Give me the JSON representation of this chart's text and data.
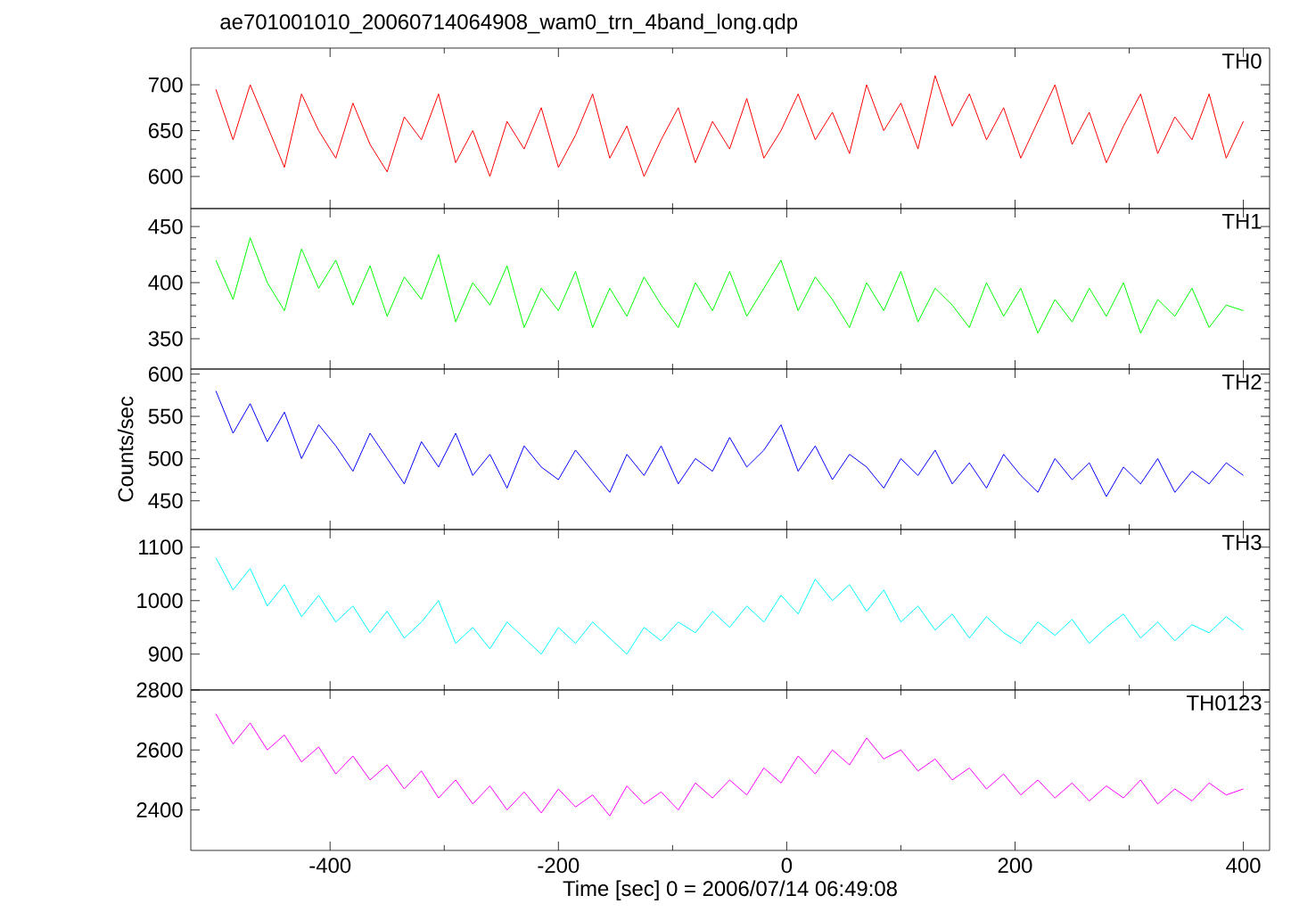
{
  "chart_data": [
    {
      "type": "line",
      "title": "ae701001010_20060714064908_wam0_trn_4band_long.qdp",
      "x": [
        -500,
        -485,
        -470,
        -455,
        -440,
        -425,
        -410,
        -395,
        -380,
        -365,
        -350,
        -335,
        -320,
        -305,
        -290,
        -275,
        -260,
        -245,
        -230,
        -215,
        -200,
        -185,
        -170,
        -155,
        -140,
        -125,
        -110,
        -95,
        -80,
        -65,
        -50,
        -35,
        -20,
        -5,
        10,
        25,
        40,
        55,
        70,
        85,
        100,
        115,
        130,
        145,
        160,
        175,
        190,
        205,
        220,
        235,
        250,
        265,
        280,
        295,
        310,
        325,
        340,
        355,
        370,
        385,
        400
      ],
      "xlim": [
        -522,
        423
      ],
      "xticks": [
        -400,
        -200,
        0,
        200,
        400
      ],
      "ylim": [
        565,
        740
      ],
      "yticks": [
        600,
        650,
        700
      ],
      "tick_labels": "y",
      "series": [
        {
          "name": "TH0",
          "color": "#ff0000",
          "values": [
            695,
            640,
            700,
            655,
            610,
            690,
            650,
            620,
            680,
            635,
            605,
            665,
            640,
            690,
            615,
            650,
            600,
            660,
            630,
            675,
            610,
            645,
            690,
            620,
            655,
            600,
            640,
            675,
            615,
            660,
            630,
            685,
            620,
            650,
            690,
            640,
            670,
            625,
            700,
            650,
            680,
            630,
            710,
            655,
            690,
            640,
            675,
            620,
            660,
            700,
            635,
            670,
            615,
            655,
            690,
            625,
            665,
            640,
            690,
            620,
            660
          ]
        }
      ]
    },
    {
      "type": "line",
      "x": [
        -500,
        -485,
        -470,
        -455,
        -440,
        -425,
        -410,
        -395,
        -380,
        -365,
        -350,
        -335,
        -320,
        -305,
        -290,
        -275,
        -260,
        -245,
        -230,
        -215,
        -200,
        -185,
        -170,
        -155,
        -140,
        -125,
        -110,
        -95,
        -80,
        -65,
        -50,
        -35,
        -20,
        -5,
        10,
        25,
        40,
        55,
        70,
        85,
        100,
        115,
        130,
        145,
        160,
        175,
        190,
        205,
        220,
        235,
        250,
        265,
        280,
        295,
        310,
        325,
        340,
        355,
        370,
        385,
        400
      ],
      "xlim": [
        -522,
        423
      ],
      "xticks": [
        -400,
        -200,
        0,
        200,
        400
      ],
      "ylim": [
        323,
        466
      ],
      "yticks": [
        350,
        400,
        450
      ],
      "tick_labels": "y",
      "series": [
        {
          "name": "TH1",
          "color": "#00ff00",
          "values": [
            420,
            385,
            440,
            400,
            375,
            430,
            395,
            420,
            380,
            415,
            370,
            405,
            385,
            425,
            365,
            400,
            380,
            415,
            360,
            395,
            375,
            410,
            360,
            395,
            370,
            405,
            380,
            360,
            400,
            375,
            410,
            370,
            395,
            420,
            375,
            405,
            385,
            360,
            400,
            375,
            410,
            365,
            395,
            380,
            360,
            400,
            370,
            395,
            355,
            385,
            365,
            395,
            370,
            400,
            355,
            385,
            370,
            395,
            360,
            380,
            375
          ]
        }
      ]
    },
    {
      "type": "line",
      "ylabel": "Counts/sec",
      "x": [
        -500,
        -485,
        -470,
        -455,
        -440,
        -425,
        -410,
        -395,
        -380,
        -365,
        -350,
        -335,
        -320,
        -305,
        -290,
        -275,
        -260,
        -245,
        -230,
        -215,
        -200,
        -185,
        -170,
        -155,
        -140,
        -125,
        -110,
        -95,
        -80,
        -65,
        -50,
        -35,
        -20,
        -5,
        10,
        25,
        40,
        55,
        70,
        85,
        100,
        115,
        130,
        145,
        160,
        175,
        190,
        205,
        220,
        235,
        250,
        265,
        280,
        295,
        310,
        325,
        340,
        355,
        370,
        385,
        400
      ],
      "xlim": [
        -522,
        423
      ],
      "xticks": [
        -400,
        -200,
        0,
        200,
        400
      ],
      "ylim": [
        416,
        606
      ],
      "yticks": [
        450,
        500,
        550,
        600
      ],
      "tick_labels": "y",
      "series": [
        {
          "name": "TH2",
          "color": "#0000ff",
          "values": [
            580,
            530,
            565,
            520,
            555,
            500,
            540,
            515,
            485,
            530,
            500,
            470,
            520,
            490,
            530,
            480,
            505,
            465,
            515,
            490,
            475,
            510,
            485,
            460,
            505,
            480,
            515,
            470,
            500,
            485,
            525,
            490,
            510,
            540,
            485,
            515,
            475,
            505,
            490,
            465,
            500,
            480,
            510,
            470,
            495,
            465,
            505,
            480,
            460,
            500,
            475,
            495,
            455,
            490,
            470,
            500,
            460,
            485,
            470,
            495,
            480
          ]
        }
      ]
    },
    {
      "type": "line",
      "x": [
        -500,
        -485,
        -470,
        -455,
        -440,
        -425,
        -410,
        -395,
        -380,
        -365,
        -350,
        -335,
        -320,
        -305,
        -290,
        -275,
        -260,
        -245,
        -230,
        -215,
        -200,
        -185,
        -170,
        -155,
        -140,
        -125,
        -110,
        -95,
        -80,
        -65,
        -50,
        -35,
        -20,
        -5,
        10,
        25,
        40,
        55,
        70,
        85,
        100,
        115,
        130,
        145,
        160,
        175,
        190,
        205,
        220,
        235,
        250,
        265,
        280,
        295,
        310,
        325,
        340,
        355,
        370,
        385,
        400
      ],
      "xlim": [
        -522,
        423
      ],
      "xticks": [
        -400,
        -200,
        0,
        200,
        400
      ],
      "ylim": [
        833,
        1133
      ],
      "yticks": [
        900,
        1000,
        1100
      ],
      "tick_labels": "y",
      "series": [
        {
          "name": "TH3",
          "color": "#00ffff",
          "values": [
            1080,
            1020,
            1060,
            990,
            1030,
            970,
            1010,
            960,
            990,
            940,
            980,
            930,
            960,
            1000,
            920,
            950,
            910,
            960,
            930,
            900,
            950,
            920,
            960,
            930,
            900,
            950,
            925,
            960,
            940,
            980,
            950,
            990,
            960,
            1010,
            975,
            1040,
            1000,
            1030,
            980,
            1020,
            960,
            990,
            945,
            975,
            930,
            970,
            940,
            920,
            960,
            935,
            965,
            920,
            950,
            975,
            930,
            960,
            925,
            955,
            940,
            970,
            945
          ]
        }
      ]
    },
    {
      "type": "line",
      "xlabel": "Time [sec] 0 = 2006/07/14 06:49:08",
      "x": [
        -500,
        -485,
        -470,
        -455,
        -440,
        -425,
        -410,
        -395,
        -380,
        -365,
        -350,
        -335,
        -320,
        -305,
        -290,
        -275,
        -260,
        -245,
        -230,
        -215,
        -200,
        -185,
        -170,
        -155,
        -140,
        -125,
        -110,
        -95,
        -80,
        -65,
        -50,
        -35,
        -20,
        -5,
        10,
        25,
        40,
        55,
        70,
        85,
        100,
        115,
        130,
        145,
        160,
        175,
        190,
        205,
        220,
        235,
        250,
        265,
        280,
        295,
        310,
        325,
        340,
        355,
        370,
        385,
        400
      ],
      "xlim": [
        -522,
        423
      ],
      "xticks": [
        -400,
        -200,
        0,
        200,
        400
      ],
      "ylim": [
        2265,
        2800
      ],
      "yticks": [
        2400,
        2600,
        2800
      ],
      "series": [
        {
          "name": "TH0123",
          "color": "#ff00ff",
          "values": [
            2720,
            2620,
            2690,
            2600,
            2650,
            2560,
            2610,
            2520,
            2580,
            2500,
            2550,
            2470,
            2530,
            2440,
            2500,
            2420,
            2480,
            2400,
            2460,
            2390,
            2470,
            2410,
            2450,
            2380,
            2480,
            2420,
            2460,
            2400,
            2490,
            2440,
            2500,
            2450,
            2540,
            2490,
            2580,
            2520,
            2600,
            2550,
            2640,
            2570,
            2600,
            2530,
            2570,
            2500,
            2540,
            2470,
            2520,
            2450,
            2500,
            2440,
            2490,
            2430,
            2480,
            2440,
            2500,
            2420,
            2470,
            2430,
            2490,
            2450,
            2470
          ]
        }
      ]
    }
  ]
}
